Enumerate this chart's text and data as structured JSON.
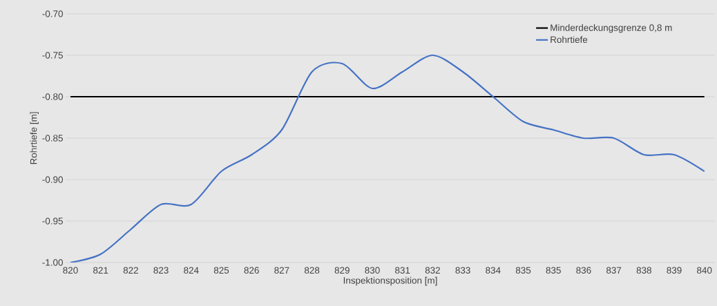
{
  "chart_data": {
    "type": "line",
    "xlabel": "Inspektionsposition [m]",
    "ylabel": "Rohrtiefe [m]",
    "categories": [
      "820",
      "821",
      "822",
      "823",
      "824",
      "825",
      "826",
      "827",
      "828",
      "829",
      "830",
      "831",
      "832",
      "833",
      "834",
      "835",
      "835",
      "836",
      "837",
      "838",
      "839",
      "840"
    ],
    "series": [
      {
        "name": "Minderdeckungsgrenze 0,8 m",
        "color": "#000000",
        "values": [
          -0.8,
          -0.8,
          -0.8,
          -0.8,
          -0.8,
          -0.8,
          -0.8,
          -0.8,
          -0.8,
          -0.8,
          -0.8,
          -0.8,
          -0.8,
          -0.8,
          -0.8,
          -0.8,
          -0.8,
          -0.8,
          -0.8,
          -0.8,
          -0.8,
          -0.8
        ]
      },
      {
        "name": "Rohrtiefe",
        "color": "#4472c4",
        "values": [
          -1.0,
          -0.99,
          -0.96,
          -0.93,
          -0.93,
          -0.89,
          -0.87,
          -0.84,
          -0.77,
          -0.76,
          -0.79,
          -0.77,
          -0.75,
          -0.77,
          -0.8,
          -0.83,
          -0.84,
          -0.85,
          -0.85,
          -0.87,
          -0.87,
          -0.89
        ]
      }
    ],
    "ylim": [
      -1.0,
      -0.7
    ],
    "yticks": [
      {
        "value": -1.0,
        "label": "-1.00"
      },
      {
        "value": -0.95,
        "label": "-0.95"
      },
      {
        "value": -0.9,
        "label": "-0.90"
      },
      {
        "value": -0.85,
        "label": "-0.85"
      },
      {
        "value": -0.8,
        "label": "-0.80"
      },
      {
        "value": -0.75,
        "label": "-0.75"
      },
      {
        "value": -0.7,
        "label": "-0.70"
      }
    ],
    "grid": "y",
    "legend": "top right",
    "marker": "none",
    "line_style": "solid"
  }
}
